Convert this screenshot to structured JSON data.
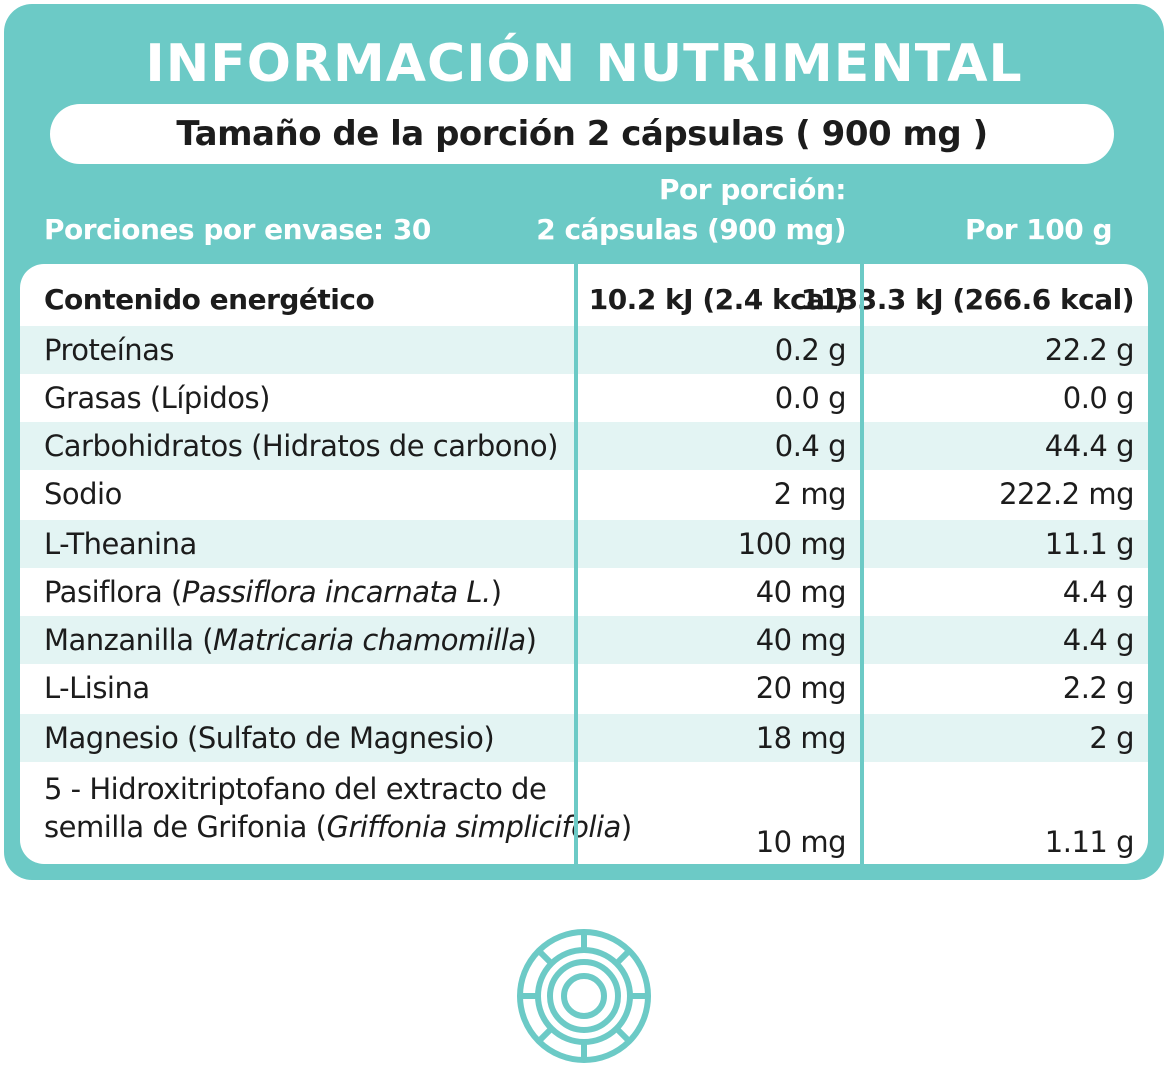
{
  "title": "INFORMACIÓN NUTRIMENTAL",
  "serving_size": "Tamaño de la porción 2 cápsulas ( 900 mg )",
  "headers": {
    "servings_per_container": "Porciones por envase: 30",
    "per_serving_line1": "Por porción:",
    "per_serving_line2": "2 cápsulas (900 mg)",
    "per_100g": "Por 100 g"
  },
  "rows": [
    {
      "name": "Contenido energético",
      "per_serving": "10.2 kJ (2.4 kcal)",
      "per_100g": "1133.3 kJ (266.6 kcal)"
    },
    {
      "name": "Proteínas",
      "per_serving": "0.2 g",
      "per_100g": "22.2 g"
    },
    {
      "name": "Grasas (Lípidos)",
      "per_serving": "0.0 g",
      "per_100g": "0.0 g"
    },
    {
      "name": "Carbohidratos (Hidratos de carbono)",
      "per_serving": "0.4 g",
      "per_100g": "44.4 g"
    },
    {
      "name": "Sodio",
      "per_serving": "2 mg",
      "per_100g": "222.2 mg"
    },
    {
      "name": "L-Theanina",
      "per_serving": "100 mg",
      "per_100g": "11.1 g"
    },
    {
      "name": "Pasiflora (",
      "sci": "Passiflora incarnata L.",
      "name_end": ")",
      "per_serving": "40 mg",
      "per_100g": "4.4 g"
    },
    {
      "name": "Manzanilla (",
      "sci": "Matricaria chamomilla",
      "name_end": ")",
      "per_serving": "40 mg",
      "per_100g": "4.4 g"
    },
    {
      "name": "L-Lisina",
      "per_serving": "20 mg",
      "per_100g": "2.2 g"
    },
    {
      "name": "Magnesio (Sulfato de Magnesio)",
      "per_serving": "18 mg",
      "per_100g": "2 g"
    },
    {
      "name_line1": "5 - Hidroxitriptofano del extracto de",
      "name_line2": "semilla de Grifonia (",
      "sci": "Griffonia simplicifolia",
      "name_end": ")",
      "per_serving": "10 mg",
      "per_100g": "1.11 g"
    }
  ],
  "colors": {
    "accent": "#6ccac6",
    "stripe": "#e3f4f3",
    "text": "#1c1c1c"
  },
  "icons": {
    "bottom_logo": "circular-seal-icon"
  }
}
